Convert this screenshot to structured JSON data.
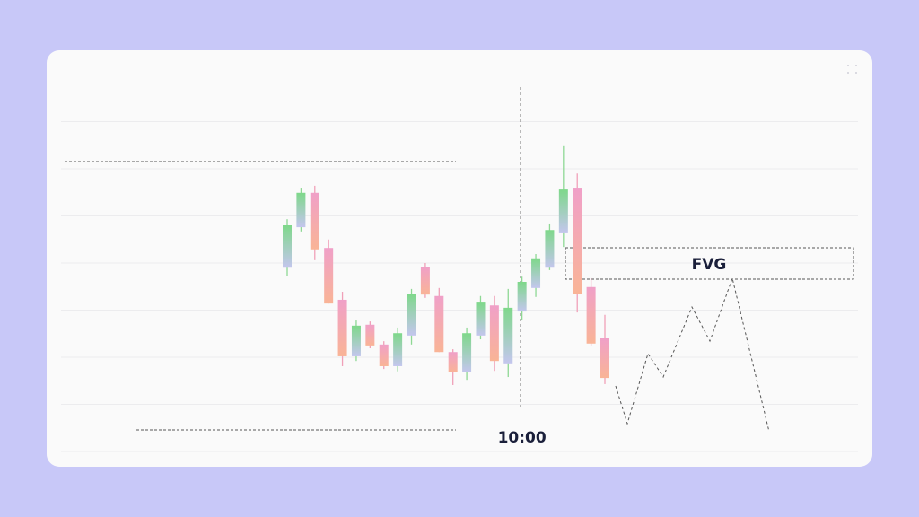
{
  "chart_data": {
    "type": "candlestick",
    "categories": [
      null,
      null,
      null,
      null,
      null,
      null,
      null,
      null,
      null,
      null,
      null,
      null,
      null,
      null,
      null,
      null,
      null,
      "10:00",
      null,
      null,
      null,
      null,
      null,
      null
    ],
    "open": [
      39.0,
      47.6,
      54.9,
      43.2,
      32.2,
      20.2,
      26.9,
      22.7,
      18.1,
      24.6,
      39.2,
      33.0,
      21.1,
      16.8,
      24.6,
      31.0,
      18.7,
      29.7,
      34.7,
      39.0,
      46.3,
      55.8,
      34.9,
      24.0
    ],
    "high": [
      49.3,
      55.8,
      56.4,
      45.0,
      33.9,
      27.8,
      27.6,
      23.4,
      26.3,
      34.5,
      40.0,
      34.7,
      21.7,
      26.3,
      33.0,
      33.0,
      34.5,
      37.1,
      41.9,
      48.2,
      64.8,
      59.0,
      36.8,
      29.0
    ],
    "low": [
      37.3,
      46.7,
      40.6,
      31.4,
      18.1,
      19.2,
      21.9,
      17.5,
      17.0,
      22.7,
      32.6,
      21.1,
      14.1,
      15.2,
      23.8,
      17.1,
      15.8,
      27.8,
      32.8,
      38.5,
      43.4,
      29.5,
      22.5,
      14.3
    ],
    "close": [
      48.0,
      54.9,
      42.9,
      31.4,
      20.2,
      26.7,
      22.5,
      18.1,
      25.1,
      33.5,
      33.3,
      21.1,
      16.8,
      25.1,
      31.6,
      19.2,
      30.5,
      36.0,
      41.0,
      47.0,
      55.6,
      33.5,
      22.9,
      15.6
    ],
    "ylim": [
      0,
      70
    ],
    "yticks": [
      0,
      10,
      20,
      30,
      40,
      50,
      60,
      70
    ],
    "grid": true,
    "annotations": [
      "FVG"
    ]
  }
}
